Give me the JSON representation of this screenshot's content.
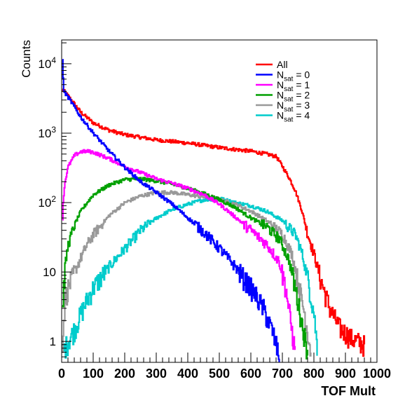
{
  "chart_data": {
    "type": "line",
    "xlabel": "TOF Mult",
    "ylabel": "Counts",
    "xlim": [
      0,
      1000
    ],
    "ylim": [
      0.5,
      22000
    ],
    "y_scale": "log",
    "grid": false,
    "legend_position": "top-right",
    "x_ticks": [
      "0",
      "100",
      "200",
      "300",
      "400",
      "500",
      "600",
      "700",
      "800",
      "900",
      "1000"
    ],
    "y_ticks": [
      {
        "value": 1,
        "label": "1"
      },
      {
        "value": 10,
        "label": "10"
      },
      {
        "value": 100,
        "label": "10^2"
      },
      {
        "value": 1000,
        "label": "10^3"
      },
      {
        "value": 10000,
        "label": "10^4"
      }
    ],
    "series": [
      {
        "name": "All",
        "sub": "",
        "rest": "",
        "color": "#ff0000",
        "x": [
          2,
          10,
          30,
          60,
          100,
          150,
          200,
          300,
          400,
          500,
          600,
          650,
          680,
          700,
          720,
          740,
          760,
          780,
          800,
          820,
          850,
          880,
          920,
          960
        ],
        "y": [
          4200,
          3900,
          3000,
          2000,
          1400,
          1100,
          950,
          800,
          720,
          620,
          550,
          500,
          460,
          330,
          230,
          150,
          80,
          35,
          18,
          8,
          3,
          1.6,
          1.1,
          0.9
        ]
      },
      {
        "name": "N",
        "sub": "sat",
        "rest": " = 0",
        "color": "#0000ff",
        "x": [
          2,
          5,
          10,
          30,
          60,
          100,
          150,
          200,
          250,
          300,
          350,
          400,
          450,
          500,
          550,
          600,
          640,
          670,
          690
        ],
        "y": [
          12000,
          4200,
          3800,
          2800,
          1700,
          1000,
          550,
          320,
          200,
          140,
          95,
          60,
          38,
          22,
          12,
          6,
          3,
          1.3,
          0.6
        ]
      },
      {
        "name": "N",
        "sub": "sat",
        "rest": " = 1",
        "color": "#ff00ff",
        "x": [
          2,
          5,
          10,
          20,
          40,
          60,
          80,
          100,
          150,
          200,
          250,
          300,
          350,
          400,
          450,
          500,
          550,
          600,
          650,
          690,
          710,
          725,
          740
        ],
        "y": [
          60,
          120,
          200,
          330,
          480,
          540,
          550,
          530,
          430,
          330,
          270,
          220,
          190,
          160,
          130,
          95,
          62,
          40,
          25,
          14,
          6,
          2,
          0.7
        ]
      },
      {
        "name": "N",
        "sub": "sat",
        "rest": " = 2",
        "color": "#00a000",
        "x": [
          2,
          10,
          20,
          40,
          60,
          80,
          100,
          150,
          200,
          250,
          300,
          350,
          400,
          450,
          500,
          550,
          600,
          650,
          690,
          720,
          740,
          760,
          780
        ],
        "y": [
          3,
          12,
          25,
          48,
          75,
          100,
          130,
          180,
          215,
          220,
          205,
          185,
          160,
          135,
          110,
          85,
          60,
          45,
          30,
          15,
          6,
          2,
          0.7
        ]
      },
      {
        "name": "N",
        "sub": "sat",
        "rest": " = 3",
        "color": "#999999",
        "x": [
          2,
          10,
          20,
          40,
          60,
          80,
          100,
          150,
          200,
          250,
          300,
          350,
          400,
          450,
          500,
          550,
          600,
          650,
          700,
          730,
          750,
          770,
          790
        ],
        "y": [
          1,
          4,
          6,
          10,
          16,
          25,
          35,
          65,
          100,
          125,
          140,
          140,
          130,
          120,
          110,
          95,
          75,
          55,
          35,
          18,
          7,
          2.5,
          0.7
        ]
      },
      {
        "name": "N",
        "sub": "sat",
        "rest": " = 4",
        "color": "#00cccc",
        "x": [
          2,
          20,
          40,
          60,
          80,
          100,
          150,
          200,
          250,
          300,
          350,
          400,
          450,
          500,
          550,
          600,
          650,
          700,
          740,
          760,
          780,
          800,
          810
        ],
        "y": [
          0.7,
          1,
          1.5,
          2.5,
          4,
          6,
          12,
          22,
          40,
          60,
          80,
          95,
          110,
          115,
          100,
          90,
          75,
          55,
          35,
          20,
          8,
          2.5,
          0.8
        ]
      }
    ]
  }
}
